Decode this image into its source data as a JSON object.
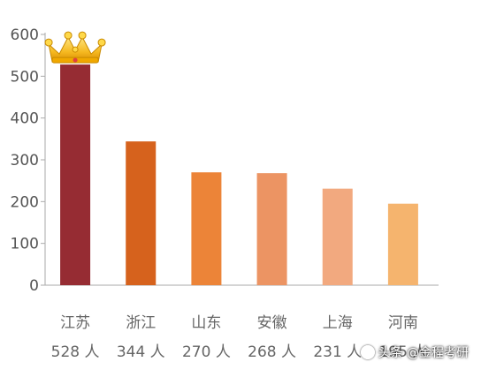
{
  "chart_data": {
    "type": "bar",
    "categories": [
      "江苏",
      "浙江",
      "山东",
      "安徽",
      "上海",
      "河南"
    ],
    "values": [
      528,
      344,
      270,
      268,
      231,
      195
    ],
    "value_labels": [
      "528 人",
      "344 人",
      "270 人",
      "268 人",
      "231 人",
      "195 人"
    ],
    "bar_colors": [
      "#962c33",
      "#d6621d",
      "#ec8438",
      "#ec9463",
      "#f2a97f",
      "#f5b46e"
    ],
    "title": "",
    "xlabel": "",
    "ylabel": "",
    "ylim": [
      0,
      600
    ],
    "yticks": [
      0,
      100,
      200,
      300,
      400,
      500,
      600
    ],
    "grid": false,
    "highlight": {
      "category": "江苏",
      "icon": "crown-icon"
    }
  },
  "watermark": {
    "text": "头条 @金程考研",
    "icon": "circle-icon"
  }
}
